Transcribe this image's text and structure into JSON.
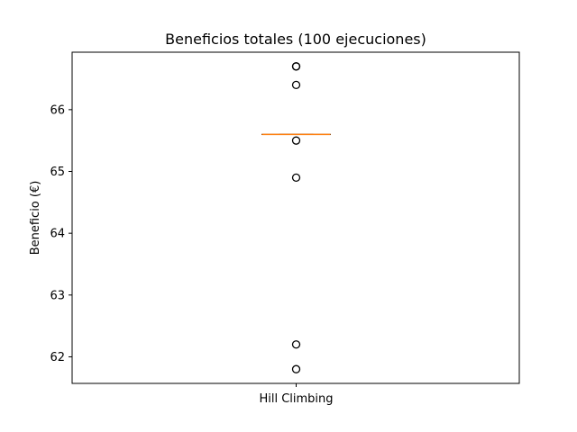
{
  "chart_data": {
    "type": "box",
    "title": "Beneficios totales (100 ejecuciones)",
    "xlabel": "",
    "ylabel": "Beneficio (€)",
    "categories": [
      "Hill Climbing"
    ],
    "ylim": [
      61.57,
      66.93
    ],
    "yticks": [
      62,
      63,
      64,
      65,
      66
    ],
    "grid": false,
    "legend": "none",
    "box": {
      "q1": 65.6,
      "median": 65.6,
      "q3": 65.6,
      "whisker_low": 65.6,
      "whisker_high": 65.6
    },
    "outliers": [
      66.7,
      66.4,
      65.5,
      64.9,
      62.2,
      61.8
    ],
    "colors": {
      "median": "#ff7f0e",
      "box": "#000000",
      "outlier_edge": "#000000"
    }
  }
}
